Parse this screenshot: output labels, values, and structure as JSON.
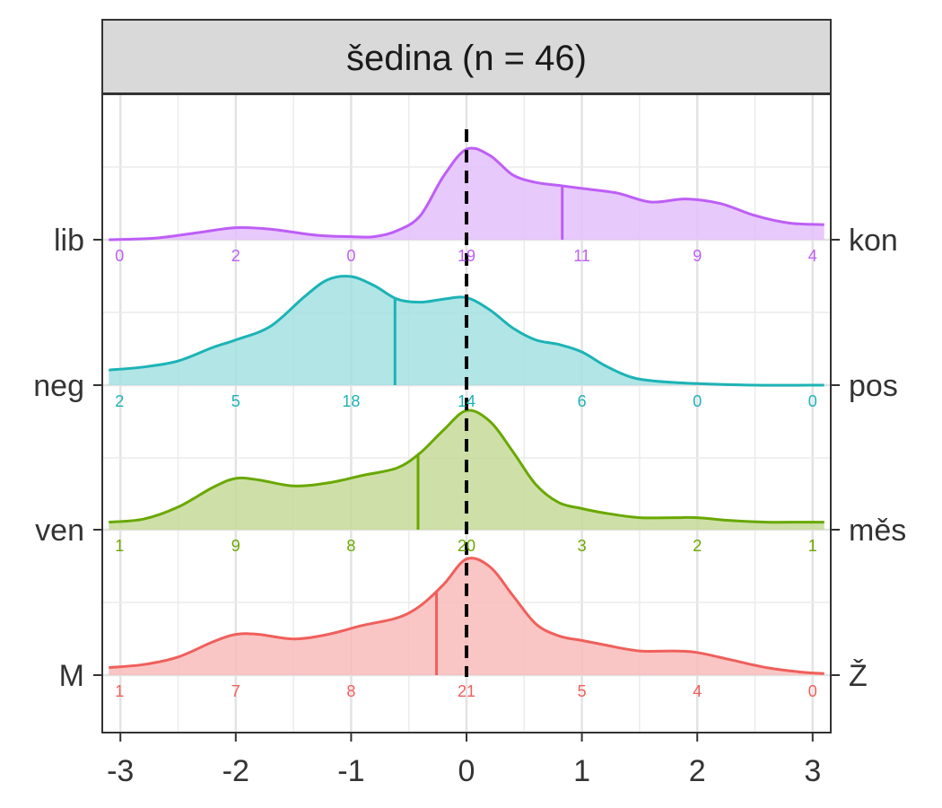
{
  "chart_data": {
    "type": "ridgeline",
    "panel_title": "šedina (n = 46)",
    "xlim": [
      -3.1,
      3.1
    ],
    "x_ticks": [
      -3,
      -2,
      -1,
      0,
      1,
      2,
      3
    ],
    "x_tick_labels": [
      "-3",
      "-2",
      "-1",
      "0",
      "1",
      "2",
      "3"
    ],
    "reference_line_x": 0,
    "count_positions": [
      -3,
      -2,
      -1,
      0,
      1,
      2,
      3
    ],
    "grid": true,
    "series": [
      {
        "left_label": "M",
        "right_label": "Ž",
        "color": "#F05F5B",
        "fill": "#F8BCBB",
        "mean": -0.26,
        "counts": [
          "1",
          "7",
          "8",
          "21",
          "5",
          "4",
          "0"
        ],
        "density": [
          [
            -3.1,
            0.05
          ],
          [
            -2.8,
            0.07
          ],
          [
            -2.5,
            0.12
          ],
          [
            -2.2,
            0.22
          ],
          [
            -2.0,
            0.27
          ],
          [
            -1.8,
            0.27
          ],
          [
            -1.5,
            0.24
          ],
          [
            -1.2,
            0.27
          ],
          [
            -0.9,
            0.33
          ],
          [
            -0.6,
            0.38
          ],
          [
            -0.4,
            0.46
          ],
          [
            -0.2,
            0.6
          ],
          [
            0,
            0.77
          ],
          [
            0.2,
            0.72
          ],
          [
            0.4,
            0.53
          ],
          [
            0.6,
            0.34
          ],
          [
            0.8,
            0.26
          ],
          [
            1.0,
            0.23
          ],
          [
            1.2,
            0.2
          ],
          [
            1.5,
            0.16
          ],
          [
            1.8,
            0.16
          ],
          [
            2.0,
            0.15
          ],
          [
            2.3,
            0.1
          ],
          [
            2.6,
            0.05
          ],
          [
            2.9,
            0.02
          ],
          [
            3.1,
            0.01
          ]
        ]
      },
      {
        "left_label": "ven",
        "right_label": "měs",
        "color": "#69A800",
        "fill": "#C5DB99",
        "mean": -0.42,
        "counts": [
          "1",
          "9",
          "8",
          "20",
          "3",
          "2",
          "1"
        ],
        "density": [
          [
            -3.1,
            0.05
          ],
          [
            -2.8,
            0.07
          ],
          [
            -2.5,
            0.15
          ],
          [
            -2.2,
            0.28
          ],
          [
            -2.0,
            0.34
          ],
          [
            -1.8,
            0.33
          ],
          [
            -1.5,
            0.29
          ],
          [
            -1.2,
            0.31
          ],
          [
            -0.9,
            0.36
          ],
          [
            -0.6,
            0.41
          ],
          [
            -0.4,
            0.51
          ],
          [
            -0.2,
            0.66
          ],
          [
            0,
            0.79
          ],
          [
            0.2,
            0.72
          ],
          [
            0.4,
            0.52
          ],
          [
            0.6,
            0.3
          ],
          [
            0.8,
            0.18
          ],
          [
            1.0,
            0.14
          ],
          [
            1.2,
            0.11
          ],
          [
            1.5,
            0.08
          ],
          [
            1.8,
            0.08
          ],
          [
            2.0,
            0.08
          ],
          [
            2.3,
            0.06
          ],
          [
            2.6,
            0.05
          ],
          [
            2.9,
            0.05
          ],
          [
            3.1,
            0.05
          ]
        ]
      },
      {
        "left_label": "neg",
        "right_label": "pos",
        "color": "#1CB3B6",
        "fill": "#A3E1E2",
        "mean": -0.62,
        "counts": [
          "2",
          "5",
          "18",
          "14",
          "6",
          "0",
          "0"
        ],
        "density": [
          [
            -3.1,
            0.1
          ],
          [
            -2.8,
            0.12
          ],
          [
            -2.5,
            0.16
          ],
          [
            -2.2,
            0.25
          ],
          [
            -2.0,
            0.3
          ],
          [
            -1.7,
            0.39
          ],
          [
            -1.4,
            0.59
          ],
          [
            -1.2,
            0.7
          ],
          [
            -1.0,
            0.72
          ],
          [
            -0.8,
            0.66
          ],
          [
            -0.6,
            0.57
          ],
          [
            -0.4,
            0.55
          ],
          [
            -0.2,
            0.57
          ],
          [
            0,
            0.58
          ],
          [
            0.2,
            0.5
          ],
          [
            0.4,
            0.38
          ],
          [
            0.6,
            0.3
          ],
          [
            0.8,
            0.27
          ],
          [
            1.0,
            0.22
          ],
          [
            1.2,
            0.13
          ],
          [
            1.4,
            0.06
          ],
          [
            1.6,
            0.03
          ],
          [
            2.0,
            0.01
          ],
          [
            2.5,
            0.0
          ],
          [
            3.1,
            0.0
          ]
        ]
      },
      {
        "left_label": "lib",
        "right_label": "kon",
        "color": "#BE5EF6",
        "fill": "#E4BFFA",
        "mean": 0.83,
        "counts": [
          "0",
          "2",
          "0",
          "19",
          "11",
          "9",
          "4"
        ],
        "density": [
          [
            -3.1,
            0.0
          ],
          [
            -2.7,
            0.01
          ],
          [
            -2.3,
            0.05
          ],
          [
            -2.0,
            0.08
          ],
          [
            -1.7,
            0.07
          ],
          [
            -1.3,
            0.03
          ],
          [
            -1.0,
            0.02
          ],
          [
            -0.8,
            0.02
          ],
          [
            -0.6,
            0.06
          ],
          [
            -0.4,
            0.16
          ],
          [
            -0.2,
            0.42
          ],
          [
            0,
            0.6
          ],
          [
            0.2,
            0.56
          ],
          [
            0.4,
            0.43
          ],
          [
            0.6,
            0.38
          ],
          [
            0.8,
            0.36
          ],
          [
            1.0,
            0.34
          ],
          [
            1.3,
            0.31
          ],
          [
            1.6,
            0.25
          ],
          [
            1.9,
            0.27
          ],
          [
            2.2,
            0.24
          ],
          [
            2.5,
            0.16
          ],
          [
            2.8,
            0.11
          ],
          [
            3.1,
            0.1
          ]
        ]
      }
    ]
  }
}
